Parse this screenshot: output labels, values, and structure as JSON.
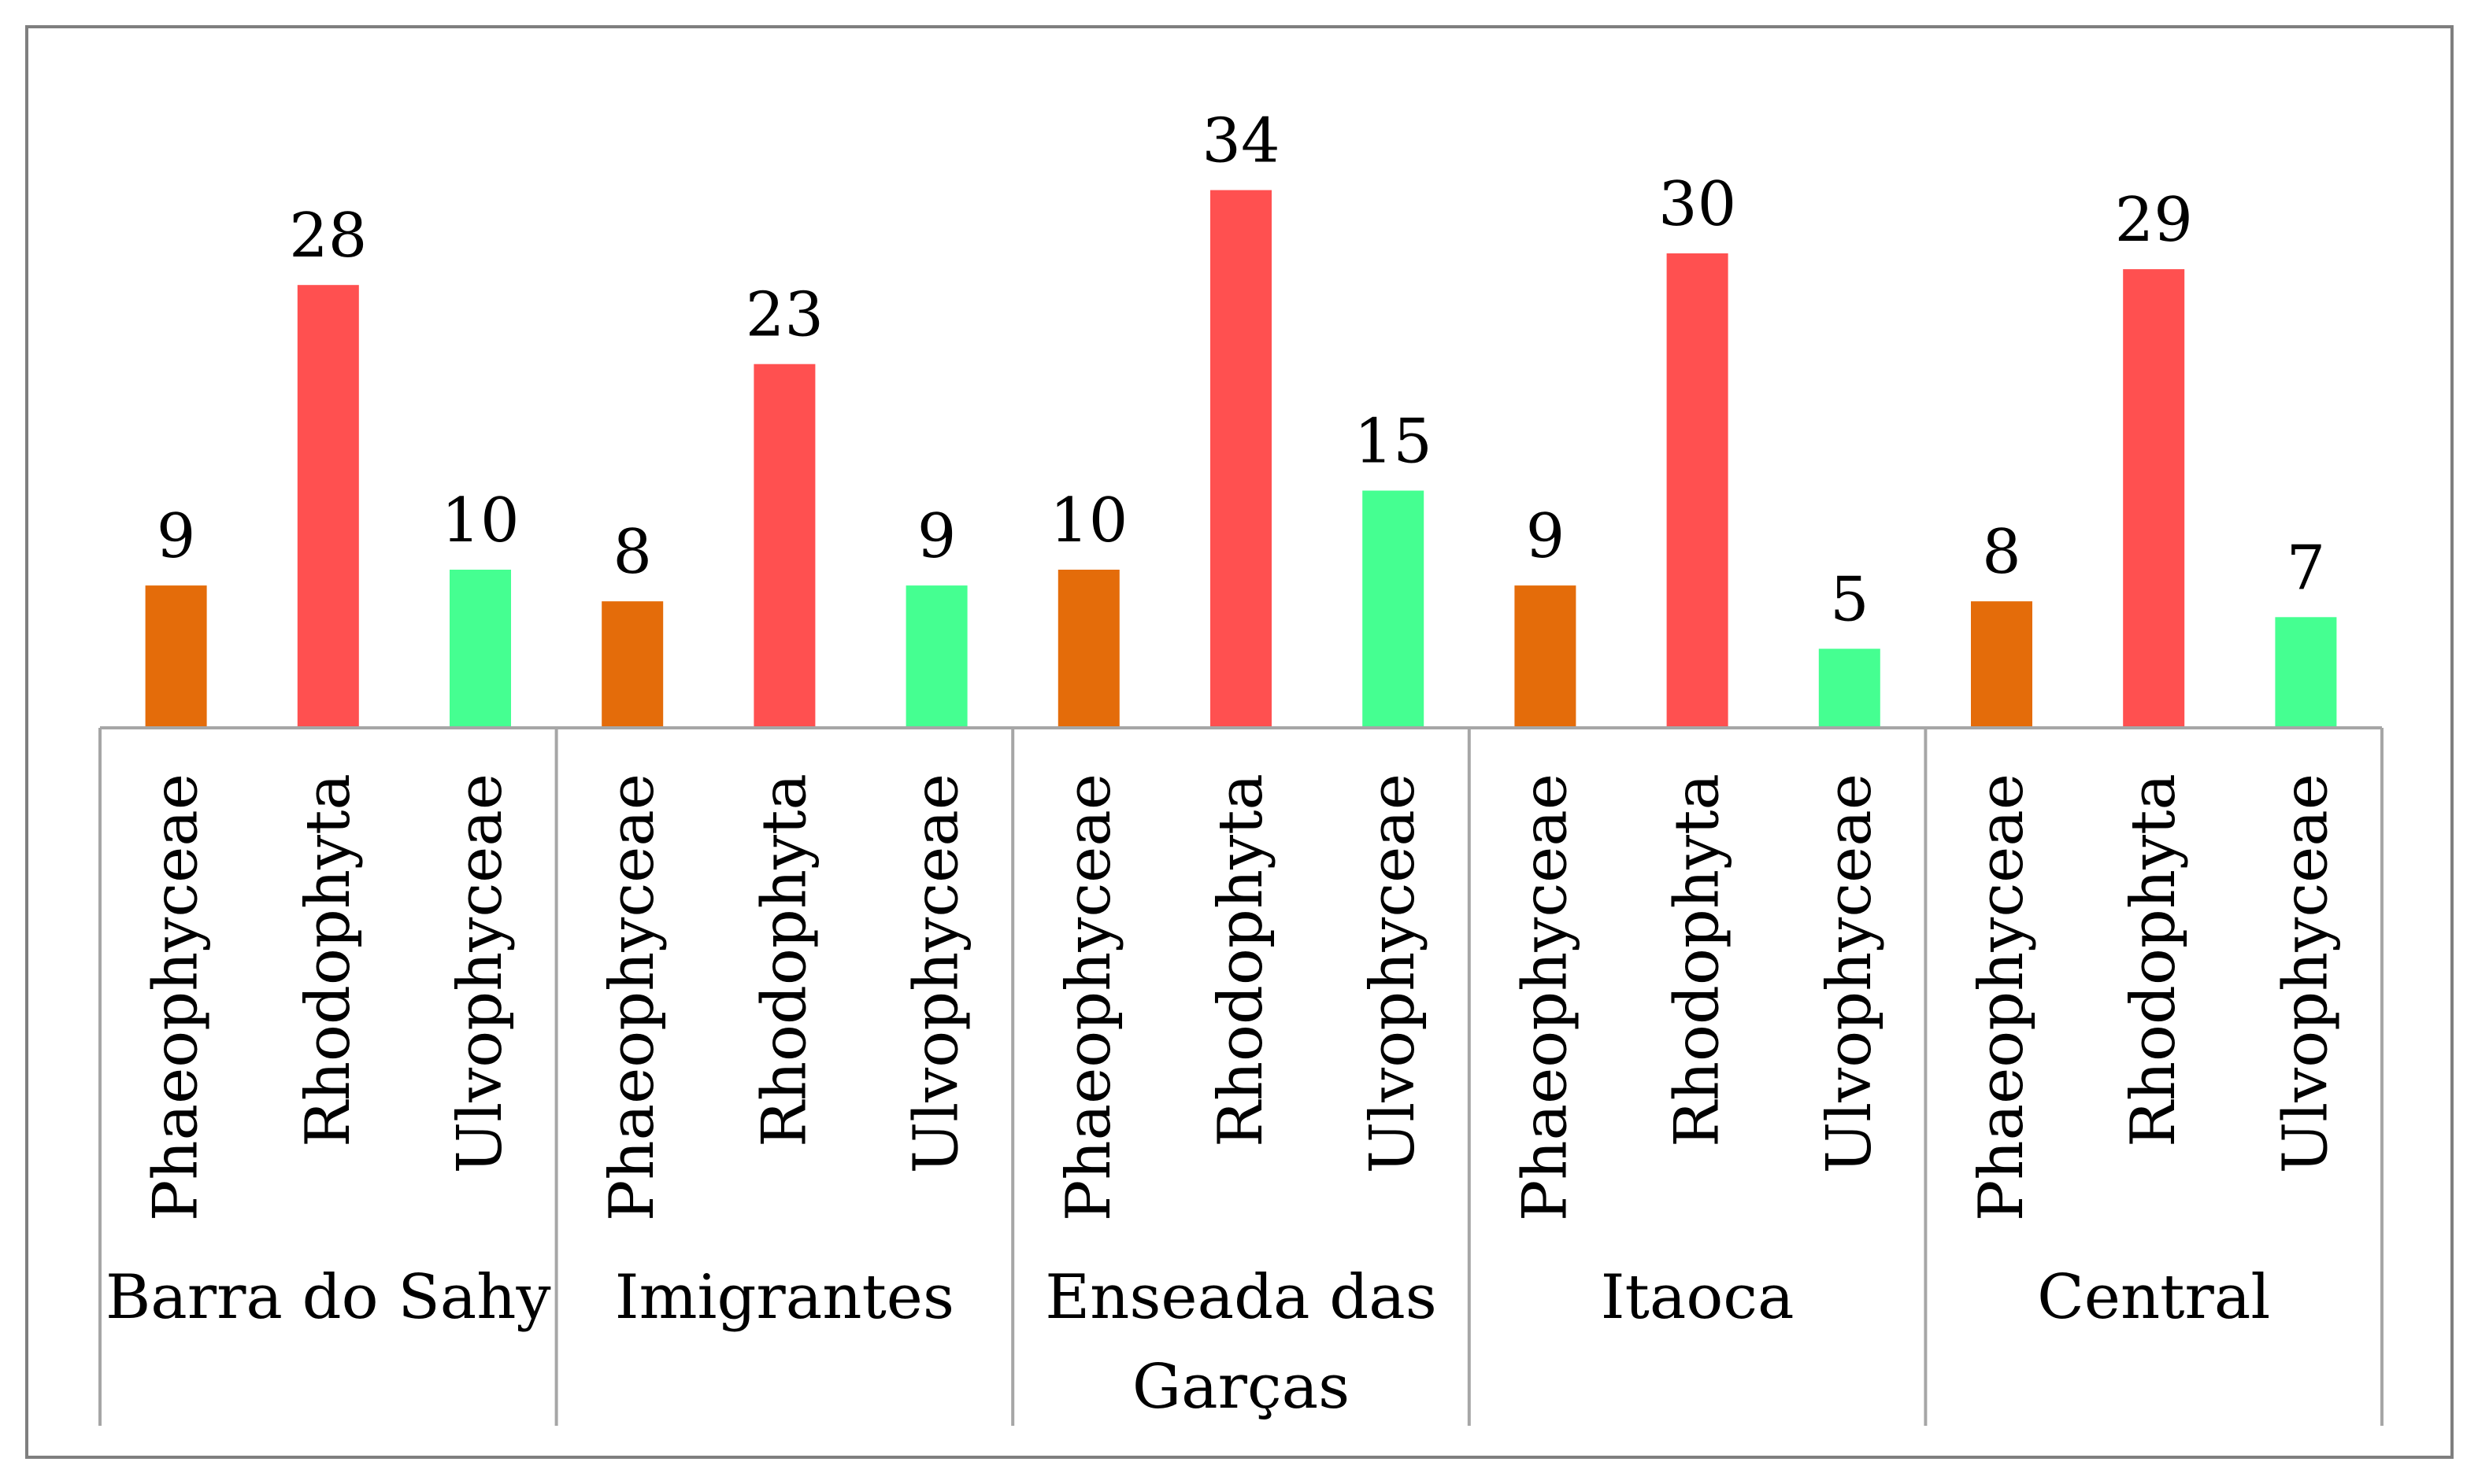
{
  "chart_data": {
    "type": "bar",
    "title": "",
    "xlabel": "",
    "ylabel": "",
    "ylim": [
      0,
      35
    ],
    "grid": false,
    "legend": "none",
    "groups": [
      {
        "name": "Barra do Sahy",
        "name_lines": [
          "Barra do Sahy"
        ]
      },
      {
        "name": "Imigrantes",
        "name_lines": [
          "Imigrantes"
        ]
      },
      {
        "name": "Enseada das Garças",
        "name_lines": [
          "Enseada das",
          "Garças"
        ]
      },
      {
        "name": "Itaoca",
        "name_lines": [
          "Itaoca"
        ]
      },
      {
        "name": "Central",
        "name_lines": [
          "Central"
        ]
      }
    ],
    "categories": [
      "Phaeophyceae",
      "Rhodophyta",
      "Ulvophyceae"
    ],
    "series_colors": {
      "Phaeophyceae": "#E46C0A",
      "Rhodophyta": "#FF5050",
      "Ulvophyceae": "#45FF91"
    },
    "values": [
      [
        9,
        28,
        10
      ],
      [
        8,
        23,
        9
      ],
      [
        10,
        34,
        15
      ],
      [
        9,
        30,
        5
      ],
      [
        8,
        29,
        7
      ]
    ],
    "border_color": "#7F7F7F",
    "axis_color": "#A6A6A6"
  }
}
